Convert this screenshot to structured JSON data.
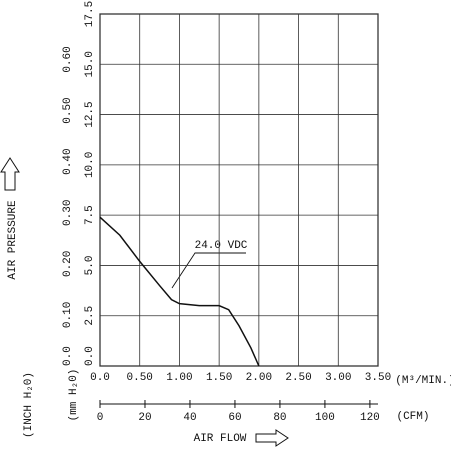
{
  "chart_data": {
    "type": "line",
    "xlim": [
      0,
      3.5
    ],
    "xticks": [
      {
        "value": 0,
        "label": "0.0"
      },
      {
        "value": 0.5,
        "label": "0.50"
      },
      {
        "value": 1,
        "label": "1.00"
      },
      {
        "value": 1.5,
        "label": "1.50"
      },
      {
        "value": 2,
        "label": "2.00"
      },
      {
        "value": 2.5,
        "label": "2.50"
      },
      {
        "value": 3,
        "label": "3.00"
      },
      {
        "value": 3.5,
        "label": "3.50"
      }
    ],
    "x_unit": "(M³/MIN.)",
    "x2lim": [
      0,
      123.6
    ],
    "x2ticks": [
      0,
      20,
      40,
      60,
      80,
      100,
      120
    ],
    "x2_unit": "(CFM)",
    "xlabel": "AIR FLOW",
    "ylim": [
      0,
      17.5
    ],
    "yticks": [
      {
        "value": 0,
        "label": "0.0"
      },
      2.5,
      {
        "value": 5,
        "label": "5.0"
      },
      7.5,
      {
        "value": 10,
        "label": "10.0"
      },
      12.5,
      {
        "value": 15,
        "label": "15.0"
      },
      17.5
    ],
    "y_unit": "(mm H₂0)",
    "y2lim": [
      0,
      0.689
    ],
    "y2ticks": [
      {
        "value": 0,
        "label": "0.0"
      },
      {
        "value": 0.1,
        "label": "0.10"
      },
      {
        "value": 0.2,
        "label": "0.20"
      },
      {
        "value": 0.3,
        "label": "0.30"
      },
      {
        "value": 0.4,
        "label": "0.40"
      },
      {
        "value": 0.5,
        "label": "0.50"
      },
      {
        "value": 0.6,
        "label": "0.60"
      }
    ],
    "y2_unit": "(INCH H₂0)",
    "ylabel": "AIR PRESSURE",
    "grid": true,
    "series": [
      {
        "name": "24.0 VDC",
        "color": "#111111",
        "x": [
          0,
          0.25,
          0.5,
          0.75,
          0.9,
          1.0,
          1.25,
          1.5,
          1.62,
          1.75,
          1.9,
          2.0
        ],
        "values": [
          7.4,
          6.5,
          5.2,
          4.0,
          3.3,
          3.1,
          3.0,
          3.0,
          2.8,
          2.0,
          0.9,
          0
        ]
      }
    ]
  }
}
